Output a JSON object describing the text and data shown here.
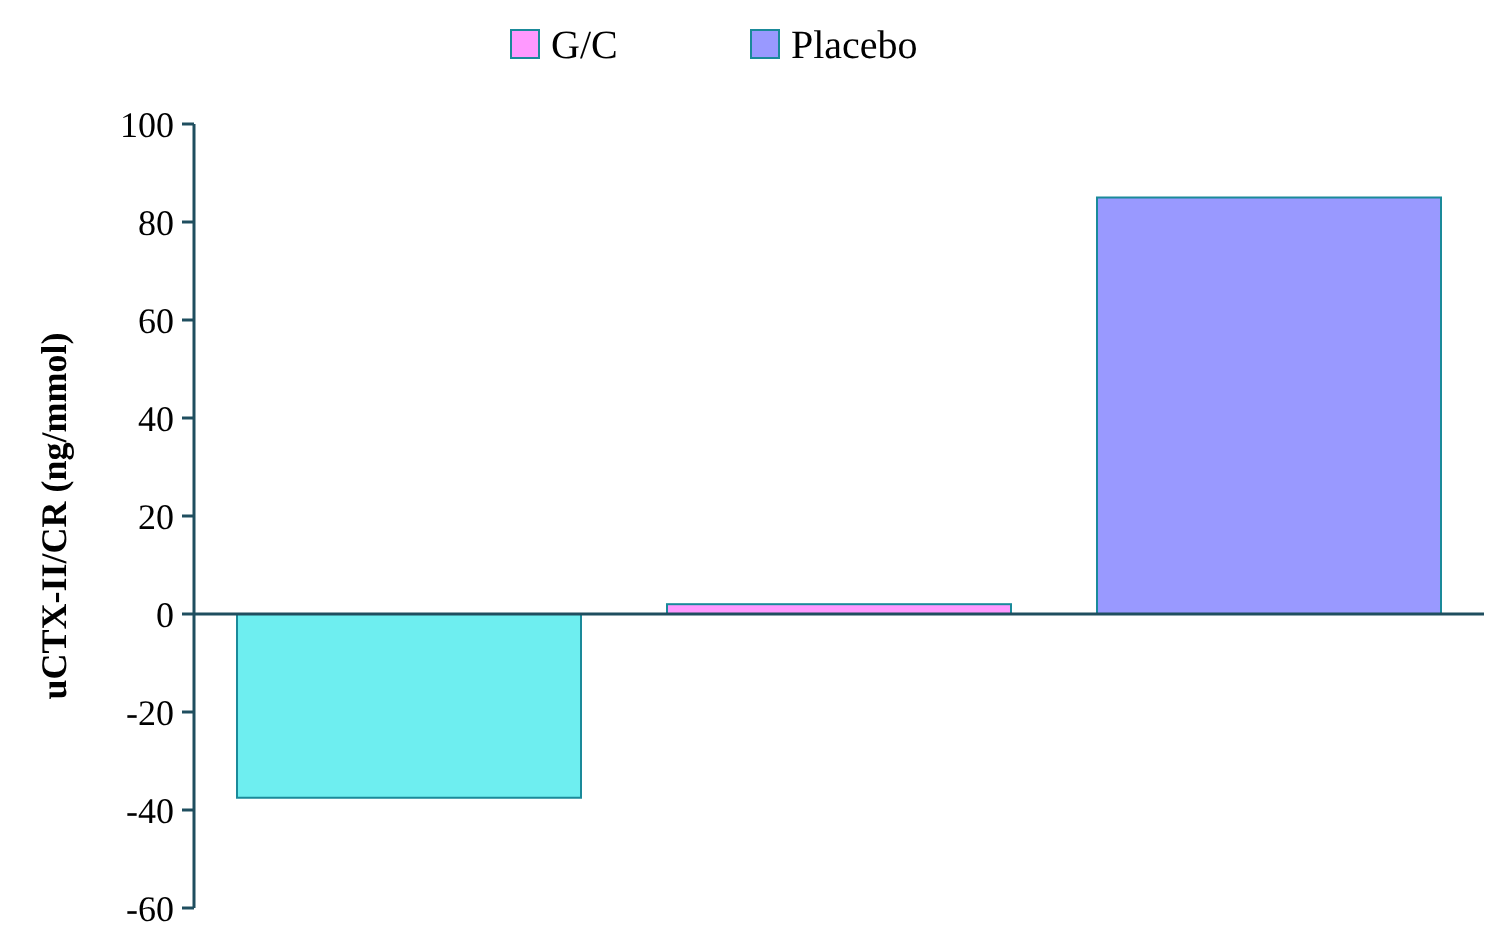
{
  "chart_data": {
    "type": "bar",
    "ylabel": "uCTX-II/CR  (ng/mmol)",
    "categories": [
      null,
      null,
      null
    ],
    "series": [
      {
        "color": "#6eeef0",
        "values": [
          -37.5,
          null,
          null
        ]
      },
      {
        "name": "G/C",
        "color": "#ff99ff",
        "values": [
          null,
          2,
          null
        ]
      },
      {
        "name": "Placebo",
        "color": "#9999ff",
        "values": [
          null,
          null,
          85
        ]
      }
    ],
    "ylim": [
      -60,
      100
    ],
    "yticks": [
      -60,
      -40,
      -20,
      0,
      20,
      40,
      60,
      80,
      100
    ],
    "grid": false,
    "legend": "top"
  }
}
